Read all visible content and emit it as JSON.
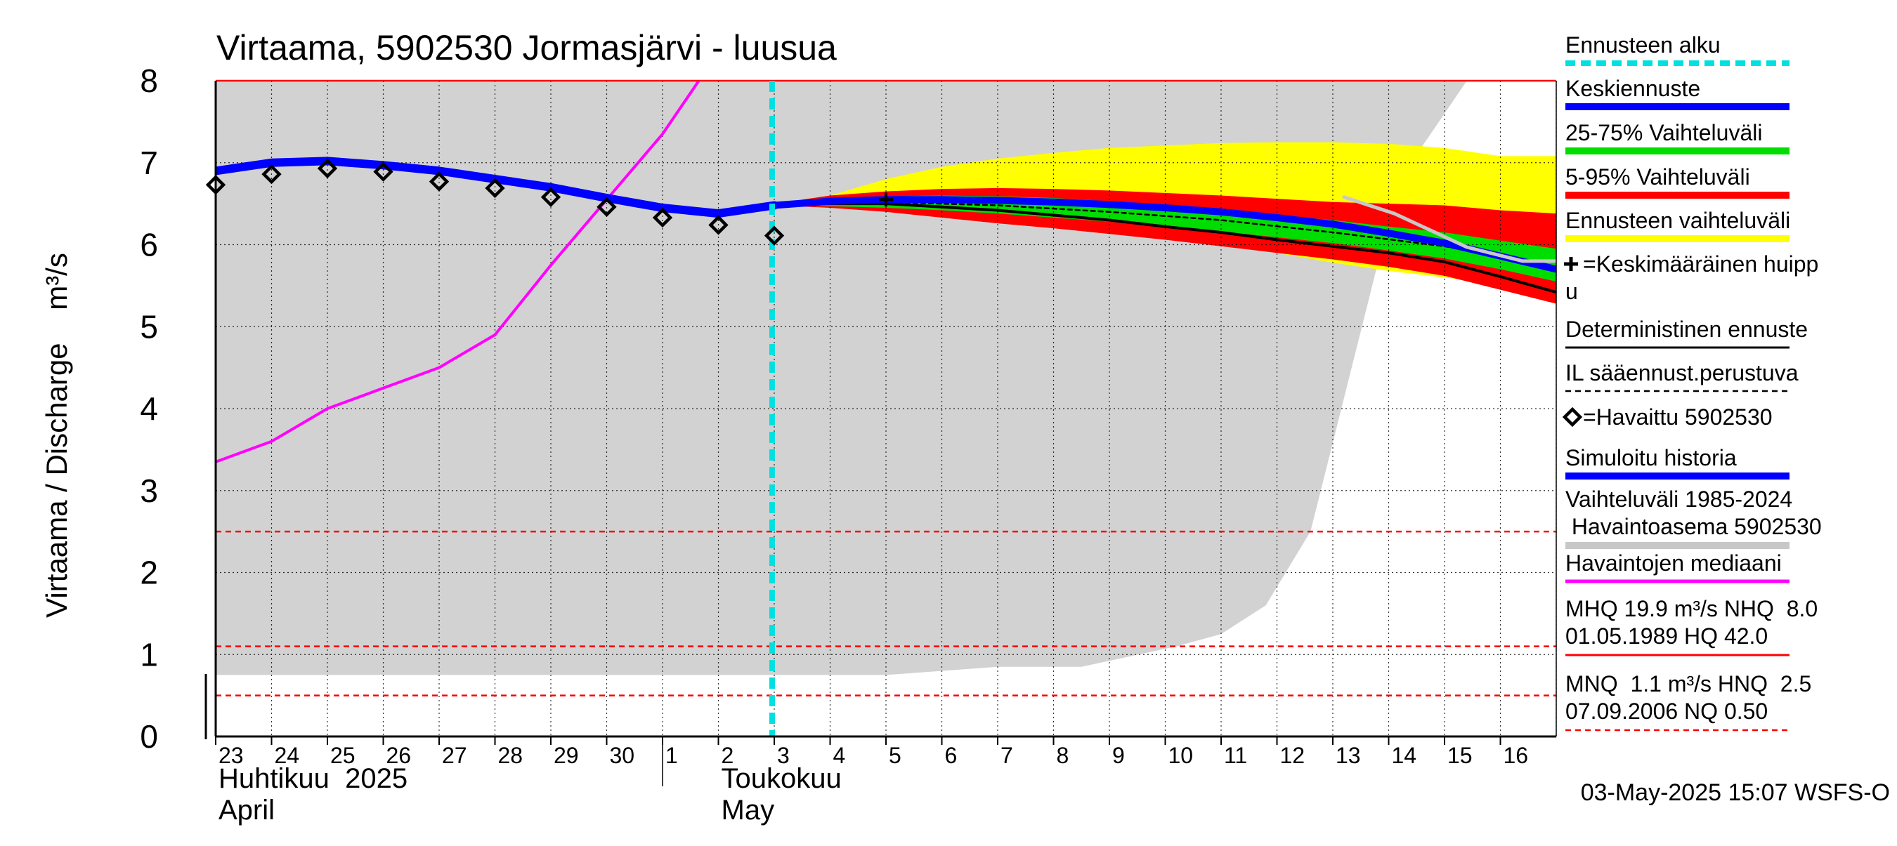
{
  "chart_data": {
    "type": "area",
    "title": "Virtaama, 5902530 Jormasjärvi - luusua",
    "ylabel": "Virtaama / Discharge    m³/s",
    "ylim": [
      0,
      8
    ],
    "yticks": [
      "0",
      "1",
      "2",
      "3",
      "4",
      "5",
      "6",
      "7",
      "8"
    ],
    "xlim": [
      0,
      24
    ],
    "x_tick_labels": [
      "23",
      "24",
      "25",
      "26",
      "27",
      "28",
      "29",
      "30",
      "1",
      "2",
      "3",
      "4",
      "5",
      "6",
      "7",
      "8",
      "9",
      "10",
      "11",
      "12",
      "13",
      "14",
      "15",
      "16"
    ],
    "month_labels": [
      {
        "fi": "Huhtikuu  2025",
        "en": "April",
        "x": 0
      },
      {
        "fi": "Toukokuu",
        "en": "May",
        "x": 9
      }
    ],
    "month_boundary": 8,
    "forecast_start": 10,
    "grid": true,
    "legend_position": "right",
    "timestamp": "03-May-2025 15:07 WSFS-O",
    "reference_lines": [
      {
        "y": 8.0,
        "color": "#ff0000",
        "style": "solid"
      },
      {
        "y": 2.5,
        "color": "#ff0000",
        "style": "dashed"
      },
      {
        "y": 1.1,
        "color": "#ff0000",
        "style": "dashed"
      },
      {
        "y": 0.5,
        "color": "#ff0000",
        "style": "dashed"
      }
    ],
    "historical_range": {
      "x": [
        0,
        12,
        14,
        15.5,
        17.2,
        18,
        18.8,
        19.6,
        20.3,
        21,
        21.6,
        22.4,
        23.4,
        24
      ],
      "lower": [
        0.75,
        0.75,
        0.85,
        0.85,
        1.1,
        1.25,
        1.6,
        2.5,
        4.4,
        6.3,
        7.2,
        8.0,
        8.0,
        8.0
      ],
      "upper": [
        8.0,
        8.0,
        8.0,
        8.0,
        8.0,
        8.0,
        8.0,
        8.0,
        8.0,
        8.0,
        8.0,
        8.0,
        8.0,
        8.0
      ]
    },
    "series": [
      {
        "name": "Ennusteen vaihteluväli",
        "color": "#ffff00",
        "kind": "band",
        "x": [
          10,
          11,
          12,
          13,
          14,
          15,
          16,
          17,
          18,
          19,
          20,
          21,
          22,
          23,
          24
        ],
        "lower": [
          6.48,
          6.47,
          6.44,
          6.4,
          6.33,
          6.26,
          6.18,
          6.1,
          6.0,
          5.9,
          5.78,
          5.68,
          5.6,
          5.52,
          5.44
        ],
        "upper": [
          6.5,
          6.6,
          6.8,
          6.95,
          7.05,
          7.12,
          7.18,
          7.21,
          7.24,
          7.25,
          7.25,
          7.23,
          7.18,
          7.08,
          7.08
        ]
      },
      {
        "name": "5-95% Vaihteluväli",
        "color": "#ff0000",
        "kind": "band",
        "x": [
          10,
          11,
          12,
          13,
          14,
          15,
          16,
          17,
          18,
          19,
          20,
          21,
          22,
          23,
          24
        ],
        "lower": [
          6.48,
          6.45,
          6.4,
          6.33,
          6.26,
          6.2,
          6.13,
          6.06,
          5.98,
          5.9,
          5.82,
          5.73,
          5.62,
          5.45,
          5.28
        ],
        "upper": [
          6.5,
          6.6,
          6.65,
          6.68,
          6.69,
          6.68,
          6.66,
          6.63,
          6.6,
          6.56,
          6.52,
          6.5,
          6.48,
          6.42,
          6.38
        ]
      },
      {
        "name": "25-75% Vaihteluväli",
        "color": "#00dd00",
        "kind": "band",
        "x": [
          10,
          11,
          12,
          13,
          14,
          15,
          16,
          17,
          18,
          19,
          20,
          21,
          22,
          23,
          24
        ],
        "lower": [
          6.48,
          6.47,
          6.45,
          6.42,
          6.38,
          6.33,
          6.28,
          6.22,
          6.16,
          6.09,
          6.02,
          5.93,
          5.83,
          5.7,
          5.55
        ],
        "upper": [
          6.5,
          6.56,
          6.59,
          6.6,
          6.59,
          6.57,
          6.53,
          6.48,
          6.43,
          6.36,
          6.3,
          6.22,
          6.15,
          6.05,
          5.95
        ]
      },
      {
        "name": "Havaintojen mediaani",
        "color": "#ff00ff",
        "kind": "line",
        "x": [
          0,
          1,
          2,
          3,
          4,
          5,
          6,
          7,
          8,
          8.65
        ],
        "values": [
          3.35,
          3.6,
          4.0,
          4.25,
          4.5,
          4.9,
          5.75,
          6.55,
          7.35,
          8.0
        ]
      },
      {
        "name": "IL sääennust.perustuva",
        "color": "#000000",
        "kind": "line",
        "x": [
          10,
          12,
          14,
          16,
          18,
          20,
          22,
          24
        ],
        "values": [
          6.5,
          6.52,
          6.48,
          6.4,
          6.3,
          6.15,
          5.98,
          5.72
        ]
      },
      {
        "name": "Deterministinen ennuste",
        "color": "#000000",
        "kind": "line",
        "x": [
          10,
          11,
          12,
          13,
          14,
          15,
          16,
          17,
          18,
          19,
          20,
          21,
          22,
          23,
          24
        ],
        "values": [
          6.49,
          6.5,
          6.5,
          6.46,
          6.42,
          6.36,
          6.3,
          6.22,
          6.15,
          6.06,
          5.98,
          5.9,
          5.79,
          5.61,
          5.42
        ]
      },
      {
        "name": "Simuloitu historia",
        "color": "#0000ff",
        "kind": "line",
        "x": [
          0,
          1,
          2,
          3,
          4,
          5,
          6,
          7,
          8,
          9,
          10
        ],
        "values": [
          6.9,
          7.0,
          7.02,
          6.97,
          6.9,
          6.8,
          6.7,
          6.57,
          6.45,
          6.38,
          6.48
        ]
      },
      {
        "name": "Keskiennuste",
        "color": "#0000ff",
        "kind": "line",
        "x": [
          10,
          11,
          12,
          13,
          14,
          15,
          16,
          17,
          18,
          19,
          20,
          21,
          22,
          23,
          24
        ],
        "values": [
          6.48,
          6.53,
          6.55,
          6.55,
          6.54,
          6.52,
          6.49,
          6.45,
          6.4,
          6.33,
          6.25,
          6.14,
          6.02,
          5.86,
          5.7
        ]
      },
      {
        "name": "Vaihteluväli 1985-2024",
        "color": "#c8c8c8",
        "kind": "line",
        "x": [
          20.2,
          21.1,
          22.4,
          23.4,
          24
        ],
        "values": [
          6.58,
          6.38,
          5.97,
          5.8,
          5.8
        ]
      }
    ],
    "observed": {
      "name": "=Havaittu 5902530",
      "x": [
        0,
        1,
        2,
        3,
        4,
        5,
        6,
        7,
        8,
        9,
        10
      ],
      "values": [
        6.73,
        6.86,
        6.93,
        6.89,
        6.77,
        6.69,
        6.58,
        6.46,
        6.33,
        6.24,
        6.11
      ]
    },
    "mean_peak": {
      "name": "=Keskimääräinen huipp u",
      "x": 12,
      "y": 6.55
    },
    "legend": [
      {
        "label": "Ennusteen alku",
        "color": "#00e0e0",
        "style": "dashed-thick"
      },
      {
        "label": "Keskiennuste",
        "color": "#0000ff",
        "style": "thick"
      },
      {
        "label": "25-75% Vaihteluväli",
        "color": "#00dd00",
        "style": "thick"
      },
      {
        "label": "5-95% Vaihteluväli",
        "color": "#ff0000",
        "style": "thick"
      },
      {
        "label": "Ennusteen vaihteluväli",
        "color": "#ffff00",
        "style": "thick"
      },
      {
        "label": "=Keskimääräinen huipp",
        "label2": "u",
        "color": "#000000",
        "style": "cross"
      },
      {
        "label": "Deterministinen ennuste",
        "color": "#000000",
        "style": "thin"
      },
      {
        "label": "IL sääennust.perustuva",
        "color": "#000000",
        "style": "dashed"
      },
      {
        "label": "=Havaittu 5902530",
        "color": "#000000",
        "style": "diamond"
      },
      {
        "label": "Simuloitu historia",
        "color": "#0000ff",
        "style": "thick"
      },
      {
        "label": "Vaihteluväli 1985-2024",
        "label2": " Havaintoasema 5902530",
        "color": "#c8c8c8",
        "style": "thick"
      },
      {
        "label": "Havaintojen mediaani",
        "color": "#ff00ff",
        "style": "medium"
      },
      {
        "label": "MHQ 19.9 m³/s NHQ  8.0",
        "label2": "01.05.1989 HQ 42.0",
        "color": "#ff0000",
        "style": "thin"
      },
      {
        "label": "MNQ  1.1 m³/s HNQ  2.5",
        "label2": "07.09.2006 NQ 0.50",
        "color": "#ff0000",
        "style": "dashed"
      }
    ]
  }
}
